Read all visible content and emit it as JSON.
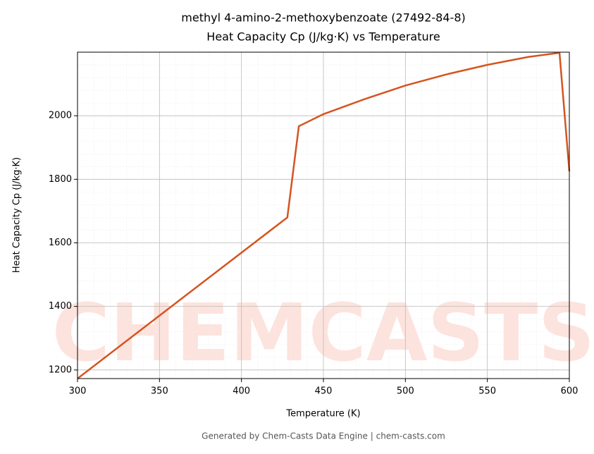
{
  "chart_data": {
    "type": "line",
    "title": "methyl 4-amino-2-methoxybenzoate (27492-84-8)",
    "subtitle": "Heat Capacity Cp (J/kg·K) vs Temperature",
    "x_label": "Temperature (K)",
    "y_label": "Heat Capacity Cp (J/kg·K)",
    "footer": "Generated by Chem-Casts Data Engine | chem-casts.com",
    "watermark": "CHEMCASTS",
    "x": [
      300,
      428,
      435,
      450,
      475,
      500,
      525,
      550,
      575,
      594,
      600
    ],
    "series": [
      {
        "name": "Cp",
        "color": "#d5541f",
        "values": [
          1173,
          1680,
          1967,
          2005,
          2052,
          2095,
          2130,
          2160,
          2185,
          2198,
          1825
        ]
      }
    ],
    "xlim": [
      300,
      600
    ],
    "ylim": [
      1173,
      2200
    ],
    "xticks": [
      300,
      350,
      400,
      450,
      500,
      550,
      600
    ],
    "yticks": [
      1200,
      1400,
      1600,
      1800,
      2000
    ],
    "grid": true
  }
}
